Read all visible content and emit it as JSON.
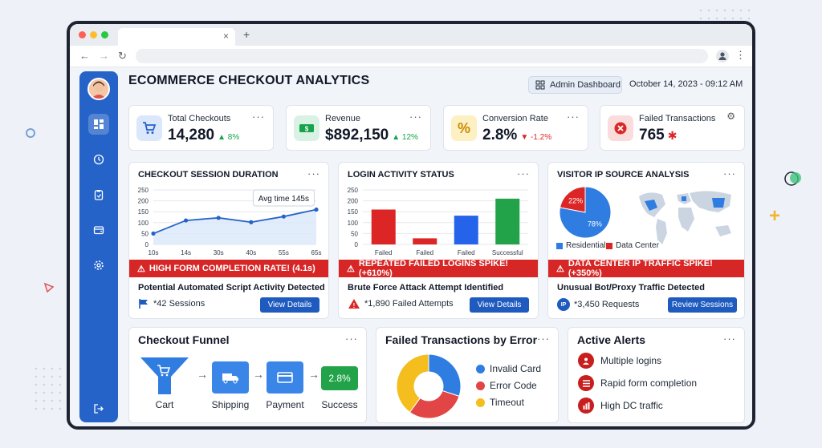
{
  "browser": {
    "tab_close": "×",
    "new_tab": "+"
  },
  "header": {
    "title": "ECOMMERCE CHECKOUT ANALYTICS",
    "admin_button": "Admin Dashboard",
    "datetime": "October 14, 2023 - 09:12 AM"
  },
  "sidebar": {
    "items": [
      {
        "icon": "dashboard-icon"
      },
      {
        "icon": "clock-icon"
      },
      {
        "icon": "clipboard-icon"
      },
      {
        "icon": "wallet-icon"
      },
      {
        "icon": "gear-icon"
      },
      {
        "icon": "logout-icon"
      }
    ]
  },
  "kpis": [
    {
      "label": "Total Checkouts",
      "value": "14,280",
      "delta": "▲ 8%",
      "delta_color": "#16a34a",
      "icon": "cart-icon",
      "icon_bg": "#dbe7fb",
      "icon_color": "#2563c9"
    },
    {
      "label": "Revenue",
      "value": "$892,150",
      "delta": "▲ 12%",
      "delta_color": "#16a34a",
      "icon": "money-icon",
      "icon_bg": "#d9f2e3",
      "icon_color": "#16a34a"
    },
    {
      "label": "Conversion Rate",
      "value": "2.8%",
      "delta": "▼ -1.2%",
      "delta_color": "#dc2626",
      "icon": "percent-icon",
      "icon_bg": "#fdf0c2",
      "icon_color": "#c98a06"
    },
    {
      "label": "Failed Transactions",
      "value": "765",
      "delta": "✱",
      "delta_color": "#dc2626",
      "icon": "x-circle-icon",
      "icon_bg": "#fbdcdc",
      "icon_color": "#dc2626"
    }
  ],
  "panels": {
    "session": {
      "title": "CHECKOUT SESSION DURATION",
      "tooltip": "Avg time 145s",
      "alert": "HIGH FORM COMPLETION RATE! (4.1s)",
      "subtitle": "Potential Automated Script Activity Detected",
      "metric": "*42 Sessions",
      "button": "View Details"
    },
    "login": {
      "title": "LOGIN ACTIVITY STATUS",
      "alert": "REPEATED FAILED LOGINS SPIKE! (+610%)",
      "subtitle": "Brute Force Attack Attempt Identified",
      "metric": "*1,890 Failed Attempts",
      "button": "View Details"
    },
    "visitor": {
      "title": "VISITOR IP SOURCE ANALYSIS",
      "alert": "DATA CENTER IP TRAFFIC SPIKE! (+350%)",
      "subtitle": "Unusual Bot/Proxy Traffic Detected",
      "metric": "*3,450 Requests",
      "badge": "IP",
      "button": "Review Sessions"
    }
  },
  "funnel": {
    "title": "Checkout Funnel",
    "steps": [
      "Cart",
      "Shipping",
      "Payment",
      "Success"
    ],
    "success_rate": "2.8%"
  },
  "failed_by_error": {
    "title": "Failed Transactions by Error"
  },
  "active_alerts": {
    "title": "Active Alerts",
    "items": [
      "Multiple logins",
      "Rapid form completion",
      "High DC traffic"
    ]
  },
  "chart_data": [
    {
      "type": "line",
      "title": "CHECKOUT SESSION DURATION",
      "x": [
        "10s",
        "14s",
        "30s",
        "40s",
        "55s",
        "65s"
      ],
      "series": [
        {
          "values": [
            50,
            110,
            122,
            102,
            128,
            160
          ]
        }
      ],
      "yticks": [
        0,
        50,
        100,
        150,
        200,
        250
      ],
      "ylim": [
        0,
        250
      ],
      "annotation": "Avg time 145s",
      "color": "#2563c9"
    },
    {
      "type": "bar",
      "title": "LOGIN ACTIVITY STATUS",
      "categories": [
        "Failed",
        "Failed",
        "Failed",
        "Successful"
      ],
      "values": [
        160,
        28,
        132,
        210
      ],
      "colors": [
        "#dc2626",
        "#dc2626",
        "#2563eb",
        "#22a34a"
      ],
      "yticks": [
        0,
        50,
        100,
        150,
        200,
        250
      ],
      "ylim": [
        0,
        250
      ]
    },
    {
      "type": "pie",
      "title": "VISITOR IP SOURCE ANALYSIS",
      "labels": [
        "Residential",
        "Data Center"
      ],
      "values": [
        78,
        22
      ],
      "display": [
        "78%",
        "22%"
      ],
      "colors": [
        "#2f7de1",
        "#dc2626"
      ]
    },
    {
      "type": "pie",
      "title": "Failed Transactions by Error",
      "labels": [
        "Invalid Card",
        "Error Code",
        "Timeout"
      ],
      "values": [
        30,
        30,
        40
      ],
      "colors": [
        "#2f7de1",
        "#e24545",
        "#f4be1e"
      ]
    }
  ]
}
